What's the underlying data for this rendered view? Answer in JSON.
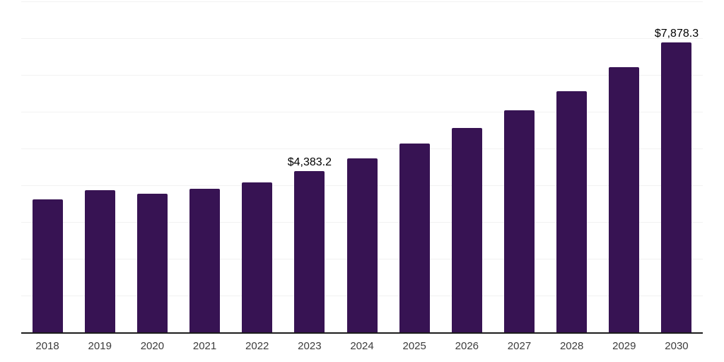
{
  "chart": {
    "background_color": "#ffffff",
    "bar_color": "#371353",
    "axis_line_color": "#1c1c1c",
    "gridline_color": "#f2f2f2",
    "data_label_color": "#000000",
    "tick_label_color": "#3c3c3c"
  },
  "chart_data": {
    "type": "bar",
    "title": "",
    "xlabel": "",
    "ylabel": "",
    "categories": [
      "2018",
      "2019",
      "2020",
      "2021",
      "2022",
      "2023",
      "2024",
      "2025",
      "2026",
      "2027",
      "2028",
      "2029",
      "2030"
    ],
    "values": [
      3610,
      3865,
      3770,
      3905,
      4077,
      4383.2,
      4725,
      5128,
      5558,
      6039,
      6564,
      7218,
      7878.3
    ],
    "data_labels": [
      "",
      "",
      "",
      "",
      "",
      "$4,383.2",
      "",
      "",
      "",
      "",
      "",
      "",
      "$7,878.3"
    ],
    "ylim": [
      0,
      9000
    ],
    "gridline_step": 1000,
    "grid": "horizontal",
    "legend": "none",
    "y_axis_tick_labels": "none",
    "labeled_points_note": "only 2023 and 2030 carry visible value labels; other values estimated from bar heights"
  }
}
